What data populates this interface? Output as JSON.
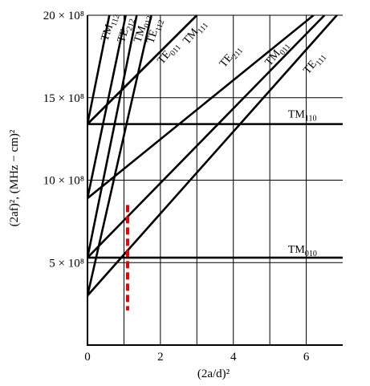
{
  "chart_data": {
    "type": "line",
    "xlabel": "(2a/d)²",
    "ylabel": "(2af)², (MHz − cm)²",
    "xlim": [
      0,
      7
    ],
    "ylim": [
      0,
      20
    ],
    "y_unit_multiplier": "× 10⁸",
    "grid": true,
    "x_ticks": [
      {
        "v": 0,
        "label": "0"
      },
      {
        "v": 2,
        "label": "2"
      },
      {
        "v": 4,
        "label": "4"
      },
      {
        "v": 6,
        "label": "6"
      }
    ],
    "y_ticks": [
      {
        "v": 5,
        "label": "5 × 10⁸"
      },
      {
        "v": 10,
        "label": "10 × 10⁸"
      },
      {
        "v": 15,
        "label": "15 × 10⁸"
      },
      {
        "v": 20,
        "label": "20 × 10⁸"
      }
    ],
    "series": [
      {
        "name": "TM010",
        "base": "TM",
        "sub": "010",
        "x": [
          0,
          7
        ],
        "y": [
          5.3,
          5.3
        ]
      },
      {
        "name": "TM110",
        "base": "TM",
        "sub": "110",
        "x": [
          0,
          7
        ],
        "y": [
          13.4,
          13.4
        ]
      },
      {
        "name": "TE111",
        "base": "TE",
        "sub": "111",
        "x": [
          0,
          7
        ],
        "y": [
          3.0,
          20.4
        ]
      },
      {
        "name": "TM011",
        "base": "TM",
        "sub": "011",
        "x": [
          0,
          6.5
        ],
        "y": [
          5.3,
          20.0
        ]
      },
      {
        "name": "TE211",
        "base": "TE",
        "sub": "211",
        "x": [
          0,
          6.2
        ],
        "y": [
          8.9,
          20.0
        ]
      },
      {
        "name": "TE011",
        "base": "TE",
        "sub": "011",
        "x": [
          0,
          3.0
        ],
        "y": [
          13.4,
          20.0
        ]
      },
      {
        "name": "TM111",
        "base": "TM",
        "sub": "111",
        "x": [
          0,
          3.0
        ],
        "y": [
          13.4,
          20.0
        ]
      },
      {
        "name": "TE112",
        "base": "TE",
        "sub": "112",
        "x": [
          0,
          1.75
        ],
        "y": [
          3.0,
          20.0
        ]
      },
      {
        "name": "TM012",
        "base": "TM",
        "sub": "012",
        "x": [
          0,
          1.35
        ],
        "y": [
          5.3,
          20.0
        ]
      },
      {
        "name": "TE212",
        "base": "TE",
        "sub": "212",
        "x": [
          0,
          1.05
        ],
        "y": [
          8.9,
          20.0
        ]
      },
      {
        "name": "TM112",
        "base": "TM",
        "sub": "112",
        "x": [
          0,
          0.6
        ],
        "y": [
          13.4,
          20.0
        ]
      }
    ],
    "labels": [
      {
        "base": "TM",
        "sub": "010",
        "x": 5.5,
        "y": 5.6,
        "rotate": 0
      },
      {
        "base": "TM",
        "sub": "110",
        "x": 5.5,
        "y": 13.8,
        "rotate": 0
      },
      {
        "base": "TE",
        "sub": "111",
        "x": 6.05,
        "y": 16.4,
        "rotate": -50
      },
      {
        "base": "TM",
        "sub": "011",
        "x": 5.0,
        "y": 16.9,
        "rotate": -50
      },
      {
        "base": "TE",
        "sub": "211",
        "x": 3.75,
        "y": 16.8,
        "rotate": -50
      },
      {
        "base": "TE",
        "sub": "011",
        "x": 2.05,
        "y": 17.0,
        "rotate": -50
      },
      {
        "base": "TM",
        "sub": "111",
        "x": 2.75,
        "y": 18.2,
        "rotate": -50
      },
      {
        "base": "TE",
        "sub": "112",
        "x": 1.8,
        "y": 18.25,
        "rotate": -72
      },
      {
        "base": "TM",
        "sub": "012",
        "x": 1.45,
        "y": 18.3,
        "rotate": -72
      },
      {
        "base": "TE",
        "sub": "212",
        "x": 1.0,
        "y": 18.3,
        "rotate": -72
      },
      {
        "base": "TM",
        "sub": "112",
        "x": 0.55,
        "y": 18.4,
        "rotate": -72
      }
    ],
    "marker": {
      "x": 1.1,
      "y_from": 2.1,
      "y_to": 8.5,
      "color": "#e60000",
      "style": "dashed"
    }
  }
}
